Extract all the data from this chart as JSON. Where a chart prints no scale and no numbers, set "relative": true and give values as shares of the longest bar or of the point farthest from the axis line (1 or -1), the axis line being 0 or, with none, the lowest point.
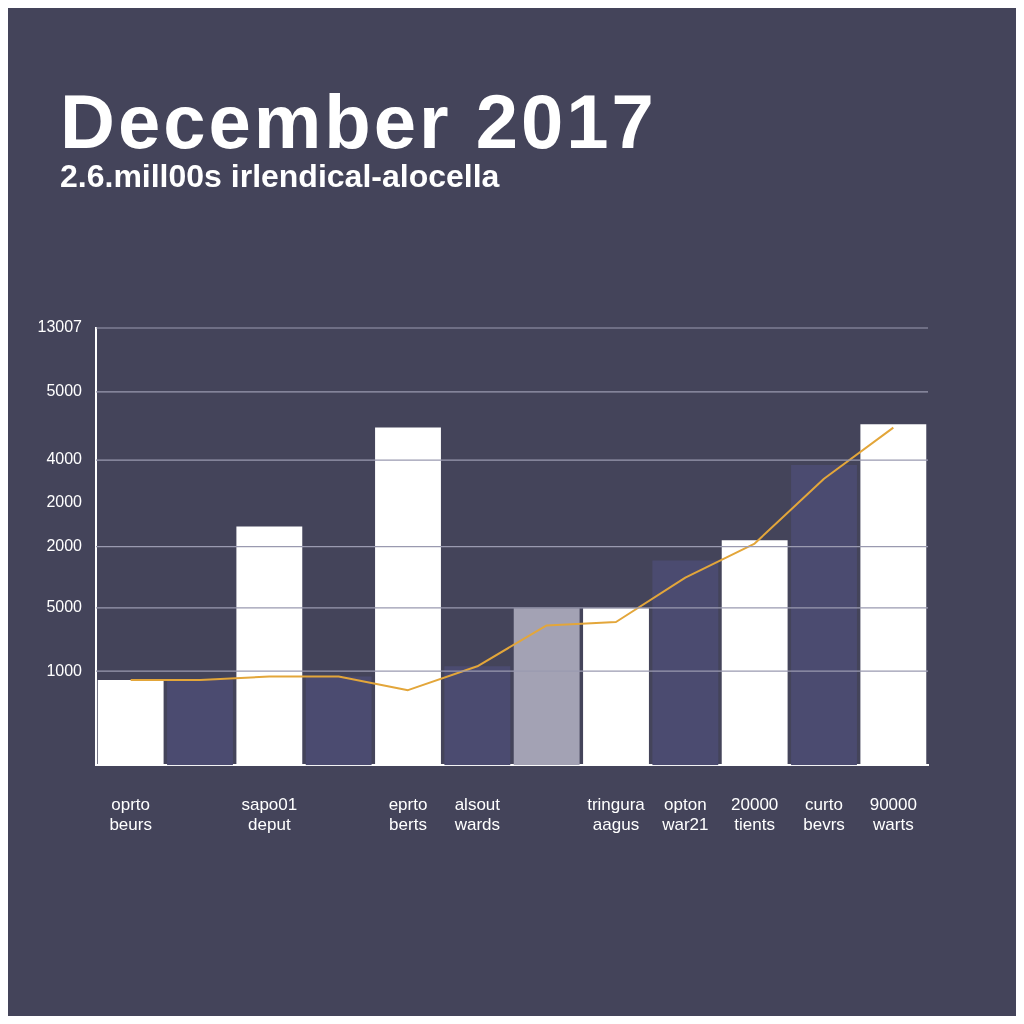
{
  "chart_data": {
    "type": "bar",
    "title": "December 2017",
    "subtitle": "2.6.mill00s irlendical-alocella",
    "relative": true,
    "categories": [
      "oprto\nbeurs",
      null,
      "sapo01\ndeput",
      null,
      "eprto\nberts",
      "alsout\nwards",
      null,
      "tringura\naagus",
      "opton\nwar21",
      "20000\ntients",
      "curto\nbevrs",
      "90000\nwarts"
    ],
    "series": [
      {
        "values": [
          0.25,
          0.25,
          0.7,
          0.26,
          0.99,
          0.29,
          0.46,
          0.46,
          0.6,
          0.66,
          0.88,
          1.0
        ],
        "colors": [
          "#ffffff",
          "#4b4b70",
          "#ffffff",
          "#4b4b70",
          "#ffffff",
          "#4b4b70",
          "#a3a2b4",
          "#ffffff",
          "#4b4b70",
          "#ffffff",
          "#4b4b70",
          "#ffffff"
        ]
      },
      {
        "type": "line",
        "color": "#e3a63a",
        "values": [
          0.25,
          0.25,
          0.26,
          0.26,
          0.22,
          0.29,
          0.41,
          0.42,
          0.55,
          0.65,
          0.84,
          0.99
        ]
      }
    ],
    "annotations": [
      "13007",
      "5000",
      "4000",
      "2000",
      "2000",
      "5000",
      "1000"
    ],
    "grid": "y",
    "legend": false,
    "marker": "none"
  }
}
